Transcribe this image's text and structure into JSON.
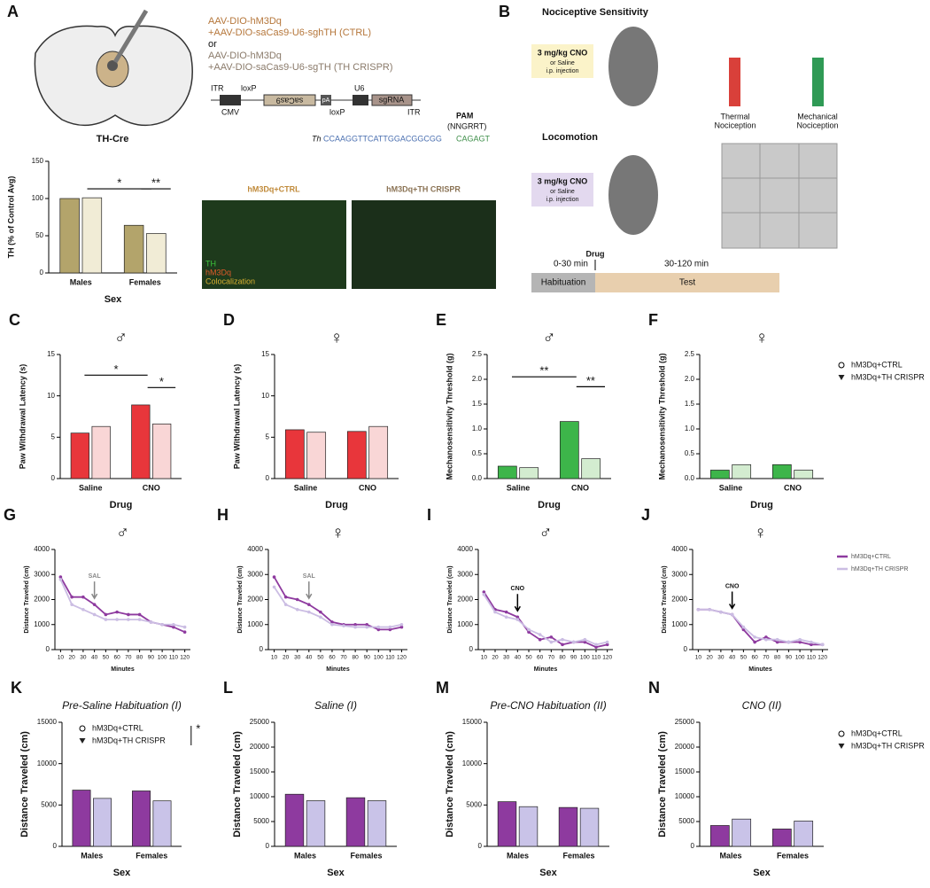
{
  "panel_labels": [
    "A",
    "B"
  ],
  "panel_a": {
    "brain_label": "TH-Cre",
    "constructs": [
      "AAV-DIO-hM3Dq",
      "+AAV-DIO-saCas9-U6-sghTH (CTRL)",
      "or",
      "AAV-DIO-hM3Dq",
      "+AAV-DIO-saCas9-U6-sgTH (TH CRISPR)"
    ],
    "vector_labels": [
      "ITR",
      "loxP",
      "U6",
      "saCas9",
      "sgRNA",
      "CMV",
      "loxP",
      "ITR",
      "pA"
    ],
    "pam": "PAM",
    "pam_motif": "(NNGRRT)",
    "gene": "Th",
    "sequence": "CCAAGGTTCATTGGACGGCGG",
    "pam_sequence": "CAGAGT",
    "micrograph_titles": [
      "hM3Dq+CTRL",
      "hM3Dq+TH CRISPR"
    ],
    "stain_legend": [
      "TH",
      "hM3Dq",
      "Colocalization"
    ]
  },
  "panel_b": {
    "title_1": "Nociceptive Sensitivity",
    "dose_1": "3 mg/kg CNO",
    "dose_1_sub": [
      "or Saline",
      "i.p. injection"
    ],
    "tests": [
      "Thermal",
      "Nociception",
      "Mechanical",
      "Nociception"
    ],
    "title_2": "Locomotion",
    "dose_2": "3 mg/kg CNO",
    "dose_2_sub": [
      "or Saline",
      "i.p. injection"
    ],
    "drug": "Drug",
    "phase_times": [
      "0-30 min",
      "30-120 min"
    ],
    "phases": [
      "Habituation",
      "Test"
    ]
  },
  "chart_data": [
    {
      "type": "bar",
      "ylabel": "TH (% of Control Avg)",
      "xlabel": "Sex",
      "categories": [
        "Males",
        "Females"
      ],
      "series": [
        {
          "color": "#b3a46b",
          "values": [
            100,
            64
          ]
        },
        {
          "color": "#f1ecd6",
          "values": [
            101,
            53
          ]
        }
      ],
      "ylim": [
        0,
        150
      ],
      "yticks": [
        0,
        50,
        100,
        150
      ],
      "significance": [
        "*",
        "**"
      ]
    },
    {
      "type": "bar",
      "panel": "C",
      "title": "♂",
      "ylabel": "Paw Withdrawal Latency (s)",
      "xlabel": "Drug",
      "categories": [
        "Saline",
        "CNO"
      ],
      "series": [
        {
          "color": "#e8363b",
          "values": [
            5.5,
            8.9
          ]
        },
        {
          "color": "#f9d6d6",
          "values": [
            6.3,
            6.6
          ]
        }
      ],
      "ylim": [
        0,
        15
      ],
      "yticks": [
        0,
        5,
        10,
        15
      ],
      "significance": [
        "*",
        "*"
      ]
    },
    {
      "type": "bar",
      "panel": "D",
      "title": "♀",
      "ylabel": "Paw Withdrawal Latency (s)",
      "xlabel": "Drug",
      "categories": [
        "Saline",
        "CNO"
      ],
      "series": [
        {
          "color": "#e8363b",
          "values": [
            5.9,
            5.7
          ]
        },
        {
          "color": "#f9d6d6",
          "values": [
            5.6,
            6.3
          ]
        }
      ],
      "ylim": [
        0,
        15
      ],
      "yticks": [
        0,
        5,
        10,
        15
      ]
    },
    {
      "type": "bar",
      "panel": "E",
      "title": "♂",
      "ylabel": "Mechanosensitivity Threshold (g)",
      "xlabel": "Drug",
      "categories": [
        "Saline",
        "CNO"
      ],
      "series": [
        {
          "color": "#3db54a",
          "values": [
            0.25,
            1.15
          ]
        },
        {
          "color": "#d3ecd0",
          "values": [
            0.22,
            0.4
          ]
        }
      ],
      "ylim": [
        0,
        2.5
      ],
      "yticks": [
        {
          "value": 0,
          "label": "0.0"
        },
        0.5,
        {
          "value": 1,
          "label": "1.0"
        },
        1.5,
        {
          "value": 2,
          "label": "2.0"
        },
        2.5
      ],
      "significance": [
        "**",
        "**"
      ]
    },
    {
      "type": "bar",
      "panel": "F",
      "title": "♀",
      "ylabel": "Mechanosensitivity Threshold (g)",
      "xlabel": "Drug",
      "categories": [
        "Saline",
        "CNO"
      ],
      "series": [
        {
          "name": "hM3Dq+CTRL",
          "color": "#3db54a",
          "values": [
            0.17,
            0.28
          ]
        },
        {
          "name": "hM3Dq+TH CRISPR",
          "color": "#d3ecd0",
          "values": [
            0.28,
            0.17
          ]
        }
      ],
      "ylim": [
        0,
        2.5
      ],
      "yticks": [
        {
          "value": 0,
          "label": "0.0"
        },
        0.5,
        {
          "value": 1,
          "label": "1.0"
        },
        1.5,
        {
          "value": 2,
          "label": "2.0"
        },
        2.5
      ],
      "legend": "right"
    },
    {
      "type": "line",
      "panel": "G",
      "title": "♂",
      "ylabel": "Distance Traveled (cm)",
      "xlabel": "Minutes",
      "annotation": "SAL",
      "x": [
        10,
        20,
        30,
        40,
        50,
        60,
        70,
        80,
        90,
        100,
        110,
        120
      ],
      "series": [
        {
          "color": "#8e3a9f",
          "values": [
            2900,
            2100,
            2100,
            1800,
            1400,
            1500,
            1400,
            1400,
            1100,
            1000,
            900,
            700
          ]
        },
        {
          "color": "#cbbde3",
          "values": [
            2800,
            1800,
            1600,
            1400,
            1200,
            1200,
            1200,
            1200,
            1100,
            1000,
            1000,
            900
          ]
        }
      ],
      "xlim": [
        5,
        125
      ],
      "ylim": [
        0,
        4000
      ],
      "yticks": [
        0,
        1000,
        2000,
        3000,
        4000
      ]
    },
    {
      "type": "line",
      "panel": "H",
      "title": "♀",
      "ylabel": "Distance Traveled (cm)",
      "xlabel": "Minutes",
      "annotation": "SAL",
      "x": [
        10,
        20,
        30,
        40,
        50,
        60,
        70,
        80,
        90,
        100,
        110,
        120
      ],
      "series": [
        {
          "color": "#8e3a9f",
          "values": [
            2900,
            2100,
            2000,
            1800,
            1500,
            1100,
            1000,
            1000,
            1000,
            800,
            800,
            900
          ]
        },
        {
          "color": "#cbbde3",
          "values": [
            2500,
            1800,
            1600,
            1500,
            1300,
            1000,
            950,
            900,
            900,
            900,
            900,
            1000
          ]
        }
      ],
      "xlim": [
        5,
        125
      ],
      "ylim": [
        0,
        4000
      ],
      "yticks": [
        0,
        1000,
        2000,
        3000,
        4000
      ]
    },
    {
      "type": "line",
      "panel": "I",
      "title": "♂",
      "ylabel": "Distance Traveled (cm)",
      "xlabel": "Minutes",
      "annotation": "CNO",
      "x": [
        10,
        20,
        30,
        40,
        50,
        60,
        70,
        80,
        90,
        100,
        110,
        120
      ],
      "series": [
        {
          "color": "#8e3a9f",
          "values": [
            2300,
            1600,
            1500,
            1300,
            700,
            400,
            500,
            200,
            300,
            300,
            100,
            200
          ]
        },
        {
          "color": "#cbbde3",
          "values": [
            2200,
            1500,
            1300,
            1200,
            800,
            600,
            300,
            400,
            300,
            400,
            200,
            300
          ]
        }
      ],
      "xlim": [
        5,
        125
      ],
      "ylim": [
        0,
        4000
      ],
      "yticks": [
        0,
        1000,
        2000,
        3000,
        4000
      ]
    },
    {
      "type": "line",
      "panel": "J",
      "title": "♀",
      "ylabel": "Distance Traveled (cm)",
      "xlabel": "Minutes",
      "annotation": "CNO",
      "x": [
        10,
        20,
        30,
        40,
        50,
        60,
        70,
        80,
        90,
        100,
        110,
        120
      ],
      "series": [
        {
          "name": "hM3Dq+CTRL",
          "color": "#8e3a9f",
          "values": [
            1600,
            1600,
            1500,
            1400,
            800,
            300,
            500,
            300,
            300,
            300,
            200,
            200
          ]
        },
        {
          "name": "hM3Dq+TH CRISPR",
          "color": "#cbbde3",
          "values": [
            1600,
            1600,
            1500,
            1400,
            900,
            500,
            400,
            400,
            300,
            400,
            300,
            200
          ]
        }
      ],
      "xlim": [
        5,
        125
      ],
      "ylim": [
        0,
        4000
      ],
      "yticks": [
        0,
        1000,
        2000,
        3000,
        4000
      ],
      "legend": "right"
    },
    {
      "type": "bar",
      "panel": "K",
      "title": "Pre-Saline Habituation (I)",
      "ylabel": "Distance Traveled (cm)",
      "xlabel": "Sex",
      "categories": [
        "Males",
        "Females"
      ],
      "series": [
        {
          "name": "hM3Dq+CTRL",
          "color": "#8e3a9f",
          "values": [
            6800,
            6700
          ]
        },
        {
          "name": "hM3Dq+TH CRISPR",
          "color": "#c9c3e8",
          "values": [
            5800,
            5500
          ]
        }
      ],
      "ylim": [
        0,
        15000
      ],
      "yticks": [
        0,
        5000,
        10000,
        15000
      ],
      "legend": "upper right",
      "significance": [
        "*"
      ]
    },
    {
      "type": "bar",
      "panel": "L",
      "title": "Saline (I)",
      "ylabel": "Distance Traveled (cm)",
      "xlabel": "Sex",
      "categories": [
        "Males",
        "Females"
      ],
      "series": [
        {
          "color": "#8e3a9f",
          "values": [
            10500,
            9800
          ]
        },
        {
          "color": "#c9c3e8",
          "values": [
            9200,
            9200
          ]
        }
      ],
      "ylim": [
        0,
        25000
      ],
      "yticks": [
        0,
        5000,
        10000,
        15000,
        20000,
        25000
      ]
    },
    {
      "type": "bar",
      "panel": "M",
      "title": "Pre-CNO Habituation (II)",
      "ylabel": "Distance Traveled (cm)",
      "xlabel": "Sex",
      "categories": [
        "Males",
        "Females"
      ],
      "series": [
        {
          "color": "#8e3a9f",
          "values": [
            5400,
            4700
          ]
        },
        {
          "color": "#c9c3e8",
          "values": [
            4800,
            4600
          ]
        }
      ],
      "ylim": [
        0,
        15000
      ],
      "yticks": [
        0,
        5000,
        10000,
        15000
      ]
    },
    {
      "type": "bar",
      "panel": "N",
      "title": "CNO (II)",
      "ylabel": "Distance Traveled (cm)",
      "xlabel": "Sex",
      "categories": [
        "Males",
        "Females"
      ],
      "series": [
        {
          "name": "hM3Dq+CTRL",
          "color": "#8e3a9f",
          "values": [
            4200,
            3500
          ]
        },
        {
          "name": "hM3Dq+TH CRISPR",
          "color": "#c9c3e8",
          "values": [
            5500,
            5100
          ]
        }
      ],
      "ylim": [
        0,
        25000
      ],
      "yticks": [
        0,
        5000,
        10000,
        15000,
        20000,
        25000
      ],
      "legend": "right"
    }
  ]
}
